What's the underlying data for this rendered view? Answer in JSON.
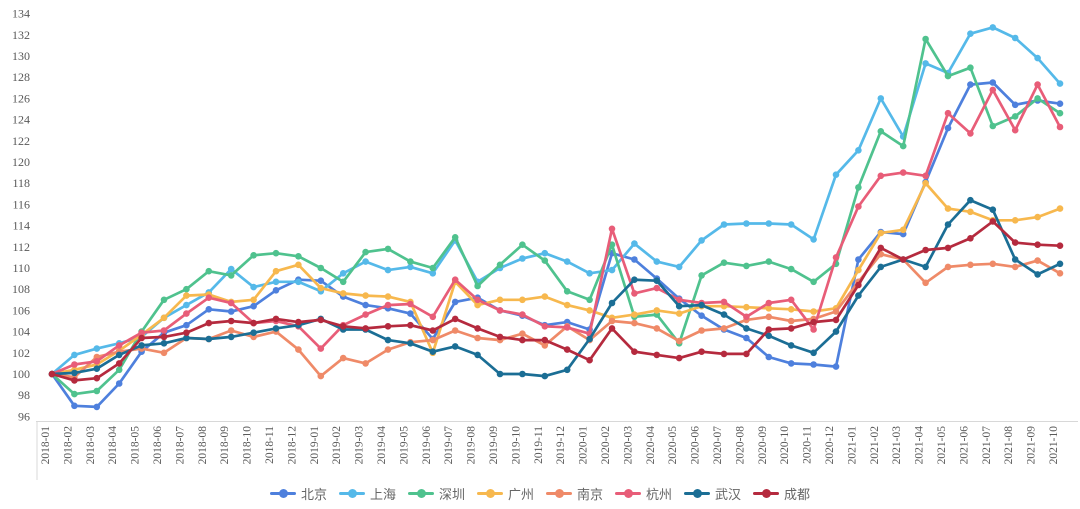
{
  "chart_data": {
    "type": "line",
    "title": "",
    "xlabel": "",
    "ylabel": "",
    "ylim": [
      96,
      134
    ],
    "ytick_step": 2,
    "grid": false,
    "legend_position": "bottom",
    "axis_label_color": "#595959",
    "axis_line_color": "#d8d8d8",
    "legend_text_color": "#666666",
    "x": [
      "2018-01",
      "2018-02",
      "2018-03",
      "2018-04",
      "2018-05",
      "2018-06",
      "2018-07",
      "2018-08",
      "2018-09",
      "2018-10",
      "2018-11",
      "2018-12",
      "2019-01",
      "2019-02",
      "2019-03",
      "2019-04",
      "2019-05",
      "2019-06",
      "2019-07",
      "2019-08",
      "2019-09",
      "2019-10",
      "2019-11",
      "2019-12",
      "2020-01",
      "2020-02",
      "2020-03",
      "2020-04",
      "2020-05",
      "2020-06",
      "2020-07",
      "2020-08",
      "2020-09",
      "2020-10",
      "2020-11",
      "2020-12",
      "2021-01",
      "2021-02",
      "2021-03",
      "2021-04",
      "2021-05",
      "2021-06",
      "2021-07",
      "2021-08",
      "2021-09",
      "2021-10"
    ],
    "series": [
      {
        "name": "北京",
        "color": "#4e80dd",
        "values": [
          100,
          97.0,
          96.9,
          99.1,
          102.1,
          103.9,
          104.6,
          106.1,
          105.9,
          106.4,
          107.9,
          108.9,
          108.8,
          107.3,
          106.5,
          106.2,
          105.7,
          103.3,
          106.8,
          107.2,
          106.0,
          105.5,
          104.6,
          104.9,
          104.2,
          111.4,
          110.8,
          109.0,
          107.1,
          105.5,
          104.2,
          103.4,
          101.6,
          101.0,
          100.9,
          100.7,
          110.8,
          113.4,
          113.2,
          118.1,
          123.2,
          127.3,
          127.5,
          125.4,
          125.8,
          125.5
        ]
      },
      {
        "name": "上海",
        "color": "#55b9e9",
        "values": [
          100,
          101.8,
          102.4,
          102.9,
          103.5,
          105.3,
          106.5,
          107.7,
          109.9,
          108.2,
          108.7,
          108.7,
          107.8,
          109.5,
          110.6,
          109.8,
          110.1,
          109.5,
          112.6,
          108.7,
          110.0,
          110.9,
          111.4,
          110.6,
          109.5,
          109.8,
          112.3,
          110.6,
          110.1,
          112.6,
          114.1,
          114.2,
          114.2,
          114.1,
          112.7,
          118.8,
          121.1,
          126.0,
          122.4,
          129.3,
          128.4,
          132.1,
          132.7,
          131.7,
          129.8,
          127.4
        ]
      },
      {
        "name": "深圳",
        "color": "#4fc28e",
        "values": [
          100,
          98.1,
          98.4,
          100.4,
          104.0,
          107.0,
          108.0,
          109.7,
          109.3,
          111.2,
          111.4,
          111.1,
          110.0,
          108.7,
          111.5,
          111.8,
          110.6,
          110.0,
          112.9,
          108.3,
          110.3,
          112.2,
          110.7,
          107.8,
          107.0,
          112.2,
          105.4,
          105.6,
          102.9,
          109.3,
          110.5,
          110.2,
          110.6,
          109.9,
          108.7,
          110.4,
          117.6,
          122.9,
          121.5,
          131.6,
          128.1,
          128.9,
          123.4,
          124.3,
          126.0,
          124.6
        ]
      },
      {
        "name": "广州",
        "color": "#f7b84e",
        "values": [
          100,
          100.4,
          100.9,
          102.2,
          103.7,
          105.3,
          107.4,
          107.5,
          106.8,
          107.0,
          109.7,
          110.3,
          108.1,
          107.6,
          107.4,
          107.3,
          106.8,
          102.0,
          108.7,
          106.5,
          107.0,
          107.0,
          107.3,
          106.5,
          106.0,
          105.3,
          105.6,
          106.0,
          105.7,
          106.4,
          106.4,
          106.3,
          106.2,
          106.1,
          105.9,
          106.2,
          109.8,
          113.3,
          113.6,
          118.0,
          115.6,
          115.3,
          114.5,
          114.5,
          114.8,
          115.6
        ]
      },
      {
        "name": "南京",
        "color": "#ef8a68",
        "values": [
          100,
          99.7,
          101.6,
          102.1,
          102.4,
          102.0,
          103.4,
          103.3,
          104.1,
          103.5,
          104.0,
          102.3,
          99.8,
          101.5,
          101.0,
          102.3,
          103.0,
          103.2,
          104.1,
          103.4,
          103.2,
          103.8,
          102.7,
          104.5,
          103.2,
          105.0,
          104.8,
          104.3,
          103.1,
          104.1,
          104.3,
          105.1,
          105.4,
          105.0,
          105.2,
          105.9,
          108.7,
          111.3,
          110.8,
          108.6,
          110.1,
          110.3,
          110.4,
          110.1,
          110.7,
          109.5
        ]
      },
      {
        "name": "杭州",
        "color": "#e85d78",
        "values": [
          100,
          100.9,
          101.2,
          102.7,
          103.9,
          104.1,
          105.7,
          107.2,
          106.7,
          104.8,
          105.0,
          104.5,
          102.4,
          104.6,
          105.6,
          106.5,
          106.6,
          105.4,
          108.9,
          107.0,
          106.0,
          105.6,
          104.5,
          104.4,
          103.8,
          113.7,
          107.6,
          108.1,
          107.0,
          106.7,
          106.8,
          105.4,
          106.7,
          107.0,
          104.2,
          111.0,
          115.8,
          118.7,
          119.0,
          118.7,
          124.6,
          122.7,
          126.8,
          123.0,
          127.3,
          123.3
        ]
      },
      {
        "name": "武汉",
        "color": "#1b6e95",
        "values": [
          100,
          100.1,
          100.5,
          101.8,
          102.7,
          102.9,
          103.4,
          103.3,
          103.5,
          103.9,
          104.3,
          104.6,
          105.2,
          104.2,
          104.2,
          103.2,
          102.9,
          102.1,
          102.6,
          101.8,
          100.0,
          100.0,
          99.8,
          100.4,
          103.3,
          106.7,
          108.9,
          108.8,
          106.4,
          106.5,
          105.6,
          104.3,
          103.6,
          102.7,
          102.0,
          104.0,
          107.4,
          110.1,
          110.8,
          110.1,
          114.1,
          116.4,
          115.5,
          110.8,
          109.4,
          110.4
        ]
      },
      {
        "name": "成都",
        "color": "#b52a3e",
        "values": [
          100,
          99.4,
          99.6,
          101.0,
          103.4,
          103.5,
          103.9,
          104.8,
          105.0,
          104.8,
          105.2,
          104.9,
          105.1,
          104.5,
          104.3,
          104.5,
          104.6,
          104.1,
          105.2,
          104.3,
          103.5,
          103.2,
          103.2,
          102.3,
          101.3,
          104.3,
          102.1,
          101.8,
          101.5,
          102.1,
          101.9,
          101.9,
          104.2,
          104.3,
          104.9,
          105.1,
          108.4,
          111.9,
          110.8,
          111.7,
          111.9,
          112.8,
          114.4,
          112.4,
          112.2,
          112.1
        ]
      }
    ]
  }
}
